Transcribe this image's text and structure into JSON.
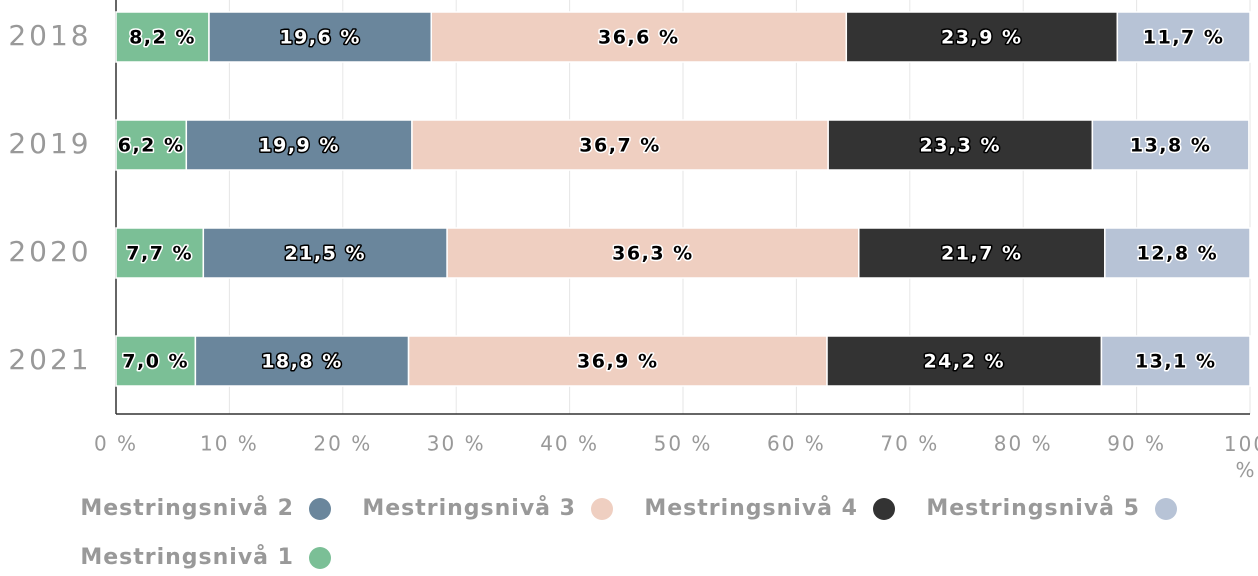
{
  "chart_data": {
    "type": "stacked_bar_horizontal",
    "categories": [
      "2018",
      "2019",
      "2020",
      "2021"
    ],
    "series": [
      {
        "name": "Mestringsnivå 1",
        "color": "#7bbf96",
        "values": [
          8.2,
          6.2,
          7.7,
          7.0
        ],
        "value_labels": [
          "8,2 %",
          "6,2 %",
          "7,7 %",
          "7,0 %"
        ]
      },
      {
        "name": "Mestringsnivå 2",
        "color": "#6a869c",
        "values": [
          19.6,
          19.9,
          21.5,
          18.8
        ],
        "value_labels": [
          "19,6 %",
          "19,9 %",
          "21,5 %",
          "18,8 %"
        ]
      },
      {
        "name": "Mestringsnivå 3",
        "color": "#efcfc1",
        "values": [
          36.6,
          36.7,
          36.3,
          36.9
        ],
        "value_labels": [
          "36,6 %",
          "36,7 %",
          "36,3 %",
          "36,9 %"
        ]
      },
      {
        "name": "Mestringsnivå 4",
        "color": "#333333",
        "values": [
          23.9,
          23.3,
          21.7,
          24.2
        ],
        "value_labels": [
          "23,9 %",
          "23,3 %",
          "21,7 %",
          "24,2 %"
        ]
      },
      {
        "name": "Mestringsnivå 5",
        "color": "#b7c3d6",
        "values": [
          11.7,
          13.8,
          12.8,
          13.1
        ],
        "value_labels": [
          "11,7 %",
          "13,8 %",
          "12,8 %",
          "13,1 %"
        ]
      }
    ],
    "legend_order": [
      1,
      2,
      3,
      4,
      0
    ],
    "xlim": [
      0,
      100
    ],
    "xticks": [
      {
        "value": 0,
        "label": "0 %"
      },
      {
        "value": 10,
        "label": "10 %"
      },
      {
        "value": 20,
        "label": "20 %"
      },
      {
        "value": 30,
        "label": "30 %"
      },
      {
        "value": 40,
        "label": "40 %"
      },
      {
        "value": 50,
        "label": "50 %"
      },
      {
        "value": 60,
        "label": "60 %"
      },
      {
        "value": 70,
        "label": "70 %"
      },
      {
        "value": 80,
        "label": "80 %"
      },
      {
        "value": 90,
        "label": "90 %"
      },
      {
        "value": 100,
        "label": "100 %"
      }
    ],
    "grid": true
  }
}
